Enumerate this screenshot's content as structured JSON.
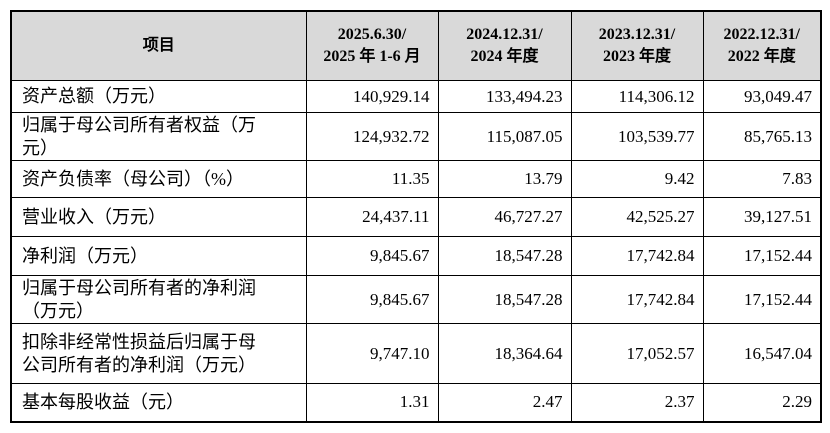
{
  "table": {
    "header": [
      [
        "项目"
      ],
      [
        "2025.6.30/",
        "2025 年 1-6 月"
      ],
      [
        "2024.12.31/",
        "2024 年度"
      ],
      [
        "2023.12.31/",
        "2023 年度"
      ],
      [
        "2022.12.31/",
        "2022 年度"
      ]
    ],
    "rows": [
      [
        [
          "资产总额（万元）"
        ],
        "140,929.14",
        "133,494.23",
        "114,306.12",
        "93,049.47"
      ],
      [
        [
          "归属于母公司所有者权益（万",
          "元）"
        ],
        "124,932.72",
        "115,087.05",
        "103,539.77",
        "85,765.13"
      ],
      [
        [
          "资产负债率（母公司）（%）"
        ],
        "11.35",
        "13.79",
        "9.42",
        "7.83"
      ],
      [
        [
          "营业收入（万元）"
        ],
        "24,437.11",
        "46,727.27",
        "42,525.27",
        "39,127.51"
      ],
      [
        [
          "净利润（万元）"
        ],
        "9,845.67",
        "18,547.28",
        "17,742.84",
        "17,152.44"
      ],
      [
        [
          "归属于母公司所有者的净利润",
          "（万元）"
        ],
        "9,845.67",
        "18,547.28",
        "17,742.84",
        "17,152.44"
      ],
      [
        [
          "扣除非经常性损益后归属于母",
          "公司所有者的净利润（万元）"
        ],
        "9,747.10",
        "18,364.64",
        "17,052.57",
        "16,547.04"
      ],
      [
        [
          "基本每股收益（元）"
        ],
        "1.31",
        "2.47",
        "2.37",
        "2.29"
      ]
    ]
  }
}
